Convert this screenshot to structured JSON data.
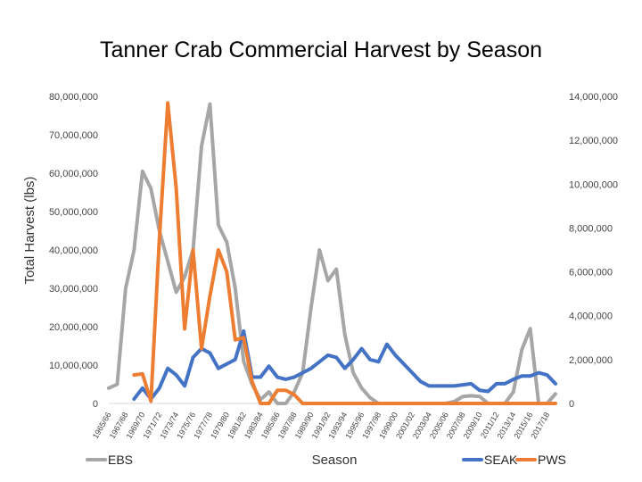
{
  "chart_data": {
    "type": "line",
    "title": "Tanner Crab Commercial Harvest by Season",
    "xlabel": "Season",
    "ylabel": "Total Harvest (lbs)",
    "ylim_left": [
      0,
      80000000
    ],
    "ylim_right": [
      0,
      14000000
    ],
    "yticks_left": [
      "0",
      "10,000,000",
      "20,000,000",
      "30,000,000",
      "40,000,000",
      "50,000,000",
      "60,000,000",
      "70,000,000",
      "80,000,000"
    ],
    "yticks_right": [
      "0",
      "2,000,000",
      "4,000,000",
      "6,000,000",
      "8,000,000",
      "10,000,000",
      "12,000,000",
      "14,000,000"
    ],
    "grid": false,
    "x": [
      "1965/66",
      "1966/67",
      "1967/68",
      "1968/69",
      "1969/70",
      "1970/71",
      "1971/72",
      "1972/73",
      "1973/74",
      "1974/75",
      "1975/76",
      "1976/77",
      "1977/78",
      "1978/79",
      "1979/80",
      "1980/81",
      "1981/82",
      "1982/83",
      "1983/84",
      "1984/85",
      "1985/86",
      "1986/87",
      "1987/88",
      "1988/89",
      "1989/90",
      "1990/91",
      "1991/92",
      "1992/93",
      "1993/94",
      "1994/95",
      "1995/96",
      "1996/97",
      "1997/98",
      "1998/99",
      "1999/00",
      "2000/01",
      "2001/02",
      "2002/03",
      "2003/04",
      "2004/05",
      "2005/06",
      "2006/07",
      "2007/08",
      "2008/09",
      "2009/10",
      "2010/11",
      "2011/12",
      "2012/13",
      "2013/14",
      "2014/15",
      "2015/16",
      "2016/17",
      "2017/18",
      "2018/19"
    ],
    "x_tick_labels": [
      "1965/66",
      "1967/68",
      "1969/70",
      "1971/72",
      "1973/74",
      "1975/76",
      "1977/78",
      "1979/80",
      "1981/82",
      "1983/84",
      "1985/86",
      "1987/88",
      "1989/90",
      "1991/92",
      "1993/94",
      "1995/96",
      "1997/98",
      "1999/00",
      "2001/02",
      "2003/04",
      "2005/06",
      "2007/08",
      "2009/10",
      "2011/12",
      "2013/14",
      "2015/16",
      "2017/18"
    ],
    "series": [
      {
        "name": "EBS",
        "axis": "left",
        "color": "#a6a6a6",
        "values": [
          4000000,
          5000000,
          30000000,
          40000000,
          60500000,
          56000000,
          45000000,
          37000000,
          29000000,
          33000000,
          40000000,
          67000000,
          78000000,
          46500000,
          42000000,
          30000000,
          11000000,
          5000000,
          1000000,
          3000000,
          0,
          0,
          3000000,
          8000000,
          25000000,
          40000000,
          32000000,
          35000000,
          18000000,
          8000000,
          4000000,
          1500000,
          0,
          0,
          0,
          0,
          0,
          0,
          0,
          0,
          0,
          500000,
          1800000,
          2000000,
          1800000,
          0,
          0,
          0,
          3000000,
          14000000,
          19500000,
          0,
          0,
          2500000
        ]
      },
      {
        "name": "SEAK",
        "axis": "right",
        "color": "#4472c4",
        "values": [
          null,
          null,
          null,
          200000,
          700000,
          200000,
          700000,
          1600000,
          1300000,
          800000,
          2100000,
          2500000,
          2300000,
          1600000,
          1800000,
          2000000,
          3300000,
          1200000,
          1200000,
          1700000,
          1200000,
          1100000,
          1200000,
          1400000,
          1600000,
          1900000,
          2200000,
          2100000,
          1600000,
          2000000,
          2500000,
          2000000,
          1900000,
          2700000,
          2200000,
          1800000,
          1400000,
          1000000,
          800000,
          800000,
          800000,
          800000,
          850000,
          900000,
          600000,
          550000,
          900000,
          900000,
          1100000,
          1250000,
          1250000,
          1400000,
          1300000,
          900000
        ]
      },
      {
        "name": "PWS",
        "axis": "right",
        "color": "#ed7d31",
        "values": [
          null,
          null,
          null,
          1300000,
          1350000,
          100000,
          7500000,
          13700000,
          9800000,
          3400000,
          7000000,
          2500000,
          4900000,
          7000000,
          6000000,
          2900000,
          3000000,
          1000000,
          0,
          0,
          600000,
          600000,
          400000,
          0,
          0,
          0,
          0,
          0,
          0,
          0,
          0,
          0,
          0,
          0,
          0,
          0,
          0,
          0,
          0,
          0,
          0,
          0,
          0,
          0,
          0,
          0,
          0,
          0,
          0,
          0,
          0,
          0,
          0,
          0
        ]
      }
    ],
    "legend": [
      {
        "label": "EBS",
        "placement": "bottom-left"
      },
      {
        "label": "SEAK",
        "placement": "bottom-right"
      },
      {
        "label": "PWS",
        "placement": "bottom-right"
      }
    ]
  }
}
